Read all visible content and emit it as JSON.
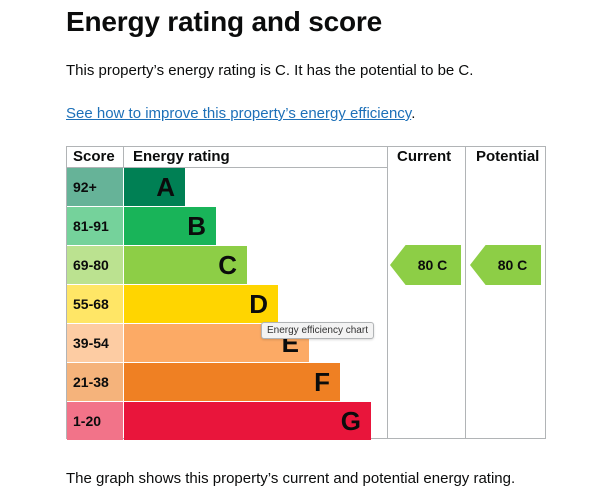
{
  "page": {
    "title": "Energy rating and score",
    "intro": "This property’s energy rating is C. It has the potential to be C.",
    "link_text": "See how to improve this property’s energy efficiency",
    "link_suffix": ".",
    "footer": "The graph shows this property’s current and potential energy rating.",
    "tooltip": "Energy efficiency chart"
  },
  "chart_data": {
    "type": "table",
    "headers": {
      "score": "Score",
      "rating": "Energy rating",
      "current": "Current",
      "potential": "Potential"
    },
    "bands": [
      {
        "score": "92+",
        "letter": "A",
        "color": "#008054",
        "score_bg": "#66b398",
        "text_color": "#0b0c0c"
      },
      {
        "score": "81-91",
        "letter": "B",
        "color": "#19b459",
        "score_bg": "#75d29b",
        "text_color": "#0b0c0c"
      },
      {
        "score": "69-80",
        "letter": "C",
        "color": "#8dce46",
        "score_bg": "#bbe290",
        "text_color": "#0b0c0c"
      },
      {
        "score": "55-68",
        "letter": "D",
        "color": "#ffd500",
        "score_bg": "#ffe666",
        "text_color": "#0b0c0c"
      },
      {
        "score": "39-54",
        "letter": "E",
        "color": "#fcaa65",
        "score_bg": "#fdcca3",
        "text_color": "#0b0c0c"
      },
      {
        "score": "21-38",
        "letter": "F",
        "color": "#ef8023",
        "score_bg": "#f5b37b",
        "text_color": "#0b0c0c"
      },
      {
        "score": "1-20",
        "letter": "G",
        "color": "#e9153b",
        "score_bg": "#f27389",
        "text_color": "#0b0c0c"
      }
    ],
    "current": {
      "score": 80,
      "letter": "C",
      "label": "80  C",
      "color": "#8dce46"
    },
    "potential": {
      "score": 80,
      "letter": "C",
      "label": "80  C",
      "color": "#8dce46"
    }
  }
}
